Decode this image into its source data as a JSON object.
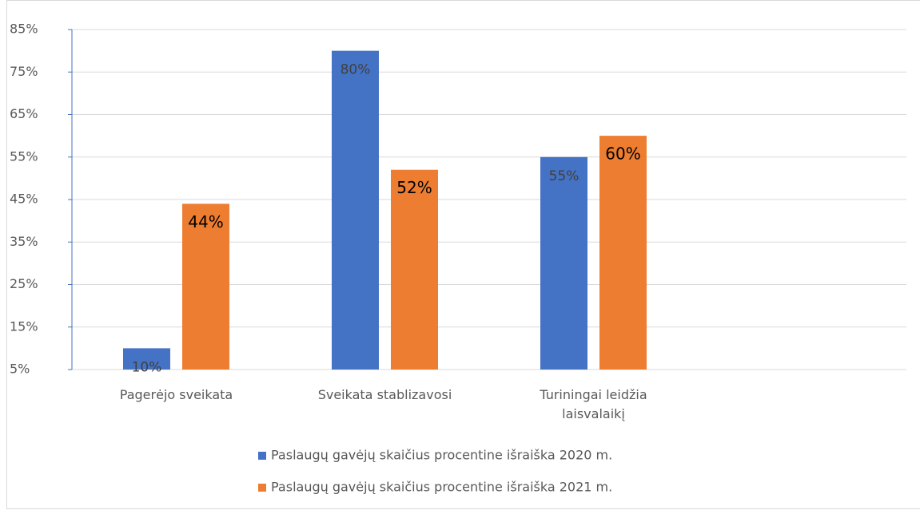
{
  "chart_data": {
    "type": "bar",
    "categories": [
      "Pagerėjo sveikata",
      "Sveikata stablizavosi",
      "Turiningai leidžia laisvalaikį",
      null
    ],
    "series": [
      {
        "name": "Paslaugų gavėjų skaičius procentine išraiška 2020 m.",
        "color": "#4472c4",
        "values": [
          10,
          80,
          55,
          null
        ],
        "value_labels": [
          "10%",
          "80%",
          "55%",
          null
        ]
      },
      {
        "name": "Paslaugų gavėjų skaičius procentine išraiška 2021 m.",
        "color": "#ed7d31",
        "values": [
          44,
          52,
          60,
          null
        ],
        "value_labels": [
          "44%",
          "52%",
          "60%",
          null
        ]
      }
    ],
    "ylim": [
      5,
      85
    ],
    "yticks": [
      {
        "value": 5,
        "label": "5%"
      },
      {
        "value": 15,
        "label": "15%"
      },
      {
        "value": 25,
        "label": "25%"
      },
      {
        "value": 35,
        "label": "35%"
      },
      {
        "value": 45,
        "label": "45%"
      },
      {
        "value": 55,
        "label": "55%"
      },
      {
        "value": 65,
        "label": "65%"
      },
      {
        "value": 75,
        "label": "75%"
      },
      {
        "value": 85,
        "label": "85%"
      }
    ],
    "grid": true,
    "legend": "bottom"
  }
}
